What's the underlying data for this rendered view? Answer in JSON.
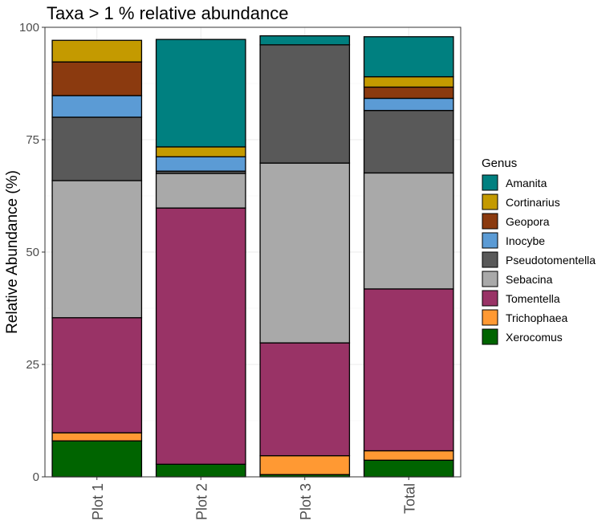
{
  "chart_data": {
    "type": "bar",
    "stacked": true,
    "title": "Taxa > 1 % relative abundance",
    "xlabel": "",
    "ylabel": "Relative Abundance (%)",
    "ylim": [
      0,
      100
    ],
    "yticks": [
      "0",
      "25",
      "50",
      "75",
      "100"
    ],
    "categories": [
      "Plot 1",
      "Plot 2",
      "Plot 3",
      "Total"
    ],
    "legend_title": "Genus",
    "legend_position": "right",
    "series": [
      {
        "name": "Xerocomus",
        "color": "#006400",
        "values": [
          8.0,
          2.8,
          0.5,
          3.7
        ]
      },
      {
        "name": "Trichophaea",
        "color": "#FF9933",
        "values": [
          1.8,
          0.0,
          4.2,
          2.1
        ]
      },
      {
        "name": "Tomentella",
        "color": "#993366",
        "values": [
          25.6,
          57.0,
          25.1,
          36.0
        ]
      },
      {
        "name": "Sebacina",
        "color": "#A9A9A9",
        "values": [
          30.5,
          7.7,
          40.0,
          25.8
        ]
      },
      {
        "name": "Pseudotomentella",
        "color": "#595959",
        "values": [
          14.1,
          0.5,
          26.3,
          13.9
        ]
      },
      {
        "name": "Inocybe",
        "color": "#5B9BD5",
        "values": [
          4.8,
          3.2,
          0.0,
          2.7
        ]
      },
      {
        "name": "Geopora",
        "color": "#8B3A0F",
        "values": [
          7.5,
          0.0,
          0.0,
          2.5
        ]
      },
      {
        "name": "Cortinarius",
        "color": "#C49A00",
        "values": [
          4.8,
          2.2,
          0.0,
          2.3
        ]
      },
      {
        "name": "Amanita",
        "color": "#008080",
        "values": [
          0.0,
          23.9,
          2.0,
          8.9
        ]
      }
    ]
  }
}
